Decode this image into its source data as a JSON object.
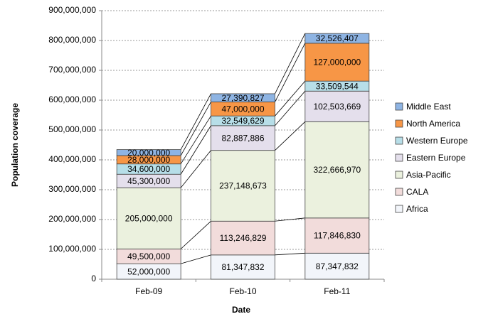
{
  "chart_data": {
    "type": "stacked_bar",
    "xlabel": "Date",
    "ylabel": "Population coverage",
    "categories": [
      "Feb-09",
      "Feb-10",
      "Feb-11"
    ],
    "series": [
      {
        "name": "Africa",
        "color": "#f2f5fa",
        "values": [
          52000000,
          81347832,
          87347832
        ],
        "value_labels": [
          "52,000,000",
          "81,347,832",
          "87,347,832"
        ]
      },
      {
        "name": "CALA",
        "color": "#f2dcdb",
        "values": [
          49500000,
          113246829,
          117846830
        ],
        "value_labels": [
          "49,500,000",
          "113,246,829",
          "117,846,830"
        ]
      },
      {
        "name": "Asia-Pacific",
        "color": "#ebf1de",
        "values": [
          205000000,
          237148673,
          322666970
        ],
        "value_labels": [
          "205,000,000",
          "237,148,673",
          "322,666,970"
        ]
      },
      {
        "name": "Eastern Europe",
        "color": "#e4dfec",
        "values": [
          45300000,
          82887886,
          102503669
        ],
        "value_labels": [
          "45,300,000",
          "82,887,886",
          "102,503,669"
        ]
      },
      {
        "name": "Western Europe",
        "color": "#b7dee8",
        "values": [
          34600000,
          32549629,
          33509544
        ],
        "value_labels": [
          "34,600,000",
          "32,549,629",
          "33,509,544"
        ]
      },
      {
        "name": "North America",
        "color": "#f79646",
        "values": [
          28000000,
          47000000,
          127000000
        ],
        "value_labels": [
          "28,000,000",
          "47,000,000",
          "127,000,000"
        ]
      },
      {
        "name": "Middle East",
        "color": "#8eb4e3",
        "values": [
          20000000,
          27390827,
          32526407
        ],
        "value_labels": [
          "20,000,000",
          "27,390,827",
          "32,526,407"
        ]
      }
    ],
    "ylim": [
      0,
      900000000
    ],
    "yticks": [
      0,
      {
        "value": 100000000,
        "label": "100,000,000"
      },
      {
        "value": 200000000,
        "label": "200,000,000"
      },
      {
        "value": 300000000,
        "label": "300,000,000"
      },
      {
        "value": 400000000,
        "label": "400,000,000"
      },
      {
        "value": 500000000,
        "label": "500,000,000"
      },
      {
        "value": 600000000,
        "label": "600,000,000"
      },
      {
        "value": 700000000,
        "label": "700,000,000"
      },
      {
        "value": 800000000,
        "label": "800,000,000"
      },
      {
        "value": 900000000,
        "label": "900,000,000"
      }
    ],
    "grid": true,
    "legend": "right"
  }
}
